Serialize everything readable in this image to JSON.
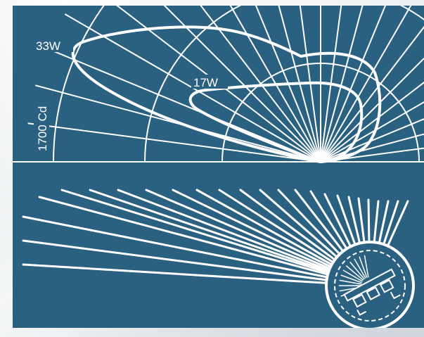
{
  "diagram": {
    "labels": {
      "high_power": "33W",
      "low_power": "17W",
      "intensity_scale": "1700 Cd"
    },
    "colors": {
      "panel": "#2a6080",
      "lines": "#ffffff"
    },
    "icons": [
      "polar-candela-diagram",
      "lamp-lens-icon"
    ]
  }
}
